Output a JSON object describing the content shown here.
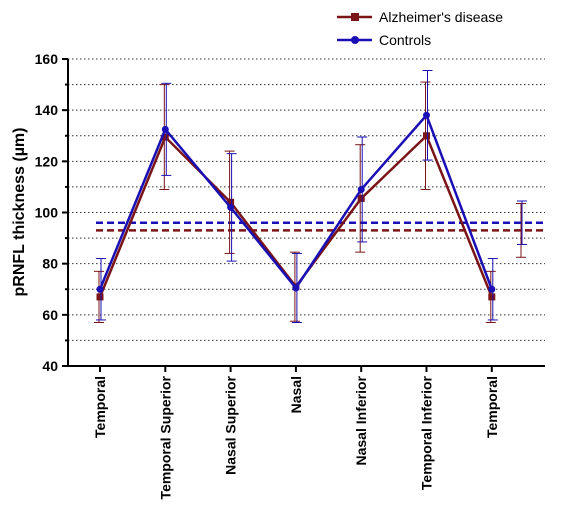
{
  "chart_data": {
    "type": "line",
    "title": "",
    "xlabel": "",
    "ylabel": "pRNFL thickness (µm)",
    "categories": [
      "Temporal",
      "Temporal Superior",
      "Nasal Superior",
      "Nasal",
      "Nasal Inferior",
      "Temporal Inferior",
      "Temporal"
    ],
    "ylim": [
      40,
      160
    ],
    "yticks": [
      40,
      60,
      80,
      100,
      120,
      140,
      160
    ],
    "grid": "horizontal dotted every 10",
    "legend_position": "top-right",
    "series": [
      {
        "name": "Alzheimer's disease",
        "color": "#7a1416",
        "marker": "square",
        "values": [
          67,
          129.5,
          104,
          71,
          105.5,
          130,
          67
        ],
        "error": [
          10,
          20.5,
          20,
          13.5,
          21,
          21,
          10
        ],
        "mean_line": 93,
        "mean_error": 10.5
      },
      {
        "name": "Controls",
        "color": "#1a0fb4",
        "marker": "circle",
        "values": [
          70,
          132.5,
          102,
          70.5,
          109,
          138,
          70
        ],
        "error": [
          12,
          18,
          21,
          13.5,
          20.5,
          17.5,
          12
        ],
        "mean_line": 96,
        "mean_error": 8.5
      }
    ]
  }
}
